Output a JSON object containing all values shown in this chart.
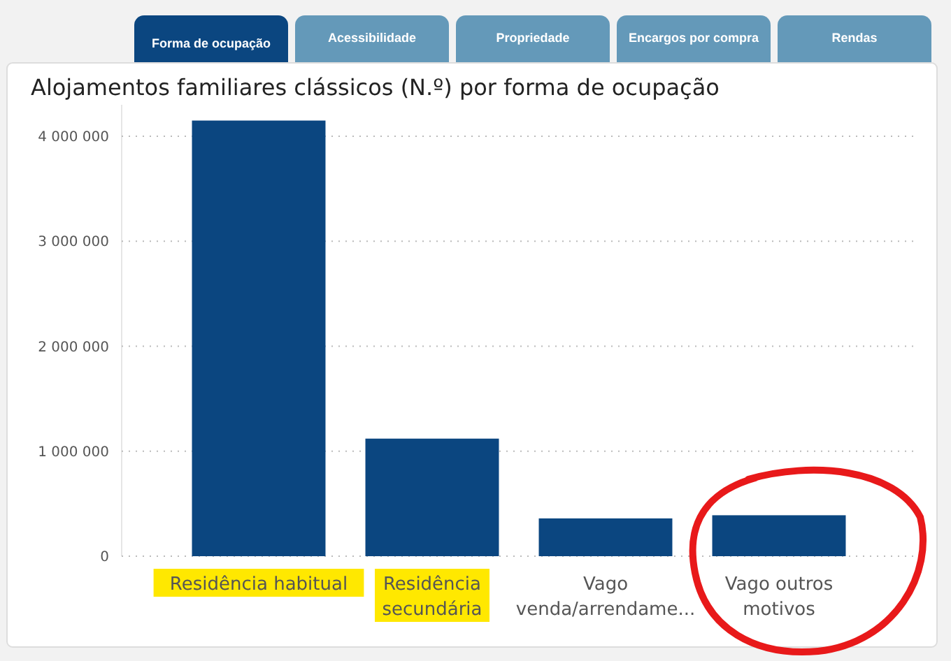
{
  "chart_data": {
    "type": "bar",
    "title": "Alojamentos familiares clássicos (N.º) por forma de ocupação",
    "categories": [
      "Residência habitual",
      "Residência secundária",
      "Vago venda/arrendame...",
      "Vago outros motivos"
    ],
    "values": [
      4150000,
      1120000,
      360000,
      390000
    ],
    "color": "#0b4680",
    "ylim": [
      0,
      4300000
    ],
    "yticks": [
      {
        "value": 0,
        "label": "0"
      },
      {
        "value": 1000000,
        "label": "1 000 000"
      },
      {
        "value": 2000000,
        "label": "2 000 000"
      },
      {
        "value": 3000000,
        "label": "3 000 000"
      },
      {
        "value": 4000000,
        "label": "4 000 000"
      }
    ],
    "grid": "y",
    "annotations": [
      "Forma de ocupação",
      "Acessibilidade",
      "Propriedade",
      "Encargos por compra",
      "Rendas"
    ]
  }
}
